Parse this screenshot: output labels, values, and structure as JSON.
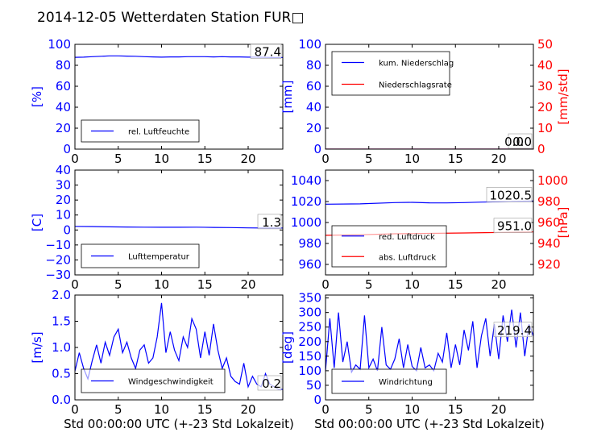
{
  "title": "2014-12-05 Wetterdaten Station FUR□",
  "colors": {
    "primary": "#0000ff",
    "secondary": "#ff0000",
    "axis": "#000000"
  },
  "chart_data": [
    {
      "id": "humidity",
      "type": "line",
      "ylabel": "[%]",
      "xlabel": "",
      "xlim": [
        0,
        24
      ],
      "ylim": [
        0,
        100
      ],
      "xticks": [
        0,
        5,
        10,
        15,
        20
      ],
      "yticks": [
        0,
        20,
        40,
        60,
        80,
        100
      ],
      "legend": [
        "rel. Luftfeuchte"
      ],
      "legend_position": "lower-left",
      "last_value_label": "87.4",
      "series": [
        {
          "name": "rel. Luftfeuchte",
          "axis": "left",
          "color": "#0000ff",
          "x": [
            0,
            1,
            2,
            3,
            4,
            5,
            6,
            7,
            8,
            9,
            10,
            11,
            12,
            13,
            14,
            15,
            16,
            17,
            18,
            19,
            20,
            21,
            22,
            23,
            24
          ],
          "y": [
            87.6,
            87.8,
            88.2,
            88.6,
            89.0,
            89.0,
            88.8,
            88.6,
            88.2,
            88.0,
            87.8,
            88.0,
            88.0,
            88.2,
            88.2,
            88.2,
            88.0,
            88.2,
            88.0,
            88.0,
            87.8,
            87.8,
            87.6,
            87.4,
            87.4
          ]
        }
      ]
    },
    {
      "id": "precip",
      "type": "line",
      "ylabel": "[mm]",
      "y2label": "[mm/std]",
      "xlabel": "",
      "xlim": [
        0,
        24
      ],
      "ylim": [
        0,
        100
      ],
      "y2lim": [
        0,
        50
      ],
      "xticks": [
        0,
        5,
        10,
        15,
        20
      ],
      "yticks": [
        0,
        20,
        40,
        60,
        80,
        100
      ],
      "y2ticks": [
        0,
        10,
        20,
        30,
        40,
        50
      ],
      "legend": [
        "kum. Niederschlag",
        "Niederschlagsrate"
      ],
      "legend_position": "upper-left",
      "last_value_label": "0.0",
      "second_value_label": "0.0",
      "series": [
        {
          "name": "kum. Niederschlag",
          "axis": "left",
          "color": "#0000ff",
          "x": [
            0,
            24
          ],
          "y": [
            0,
            0
          ]
        },
        {
          "name": "Niederschlagsrate",
          "axis": "right",
          "color": "#ff0000",
          "x": [
            0,
            24
          ],
          "y": [
            0,
            0
          ]
        }
      ]
    },
    {
      "id": "temperature",
      "type": "line",
      "ylabel": "[C]",
      "xlabel": "",
      "xlim": [
        0,
        24
      ],
      "ylim": [
        -30,
        40
      ],
      "xticks": [
        0,
        5,
        10,
        15,
        20
      ],
      "yticks": [
        -30,
        -20,
        -10,
        0,
        10,
        20,
        30,
        40
      ],
      "legend": [
        "Lufttemperatur"
      ],
      "legend_position": "lower-left",
      "last_value_label": "1.3",
      "series": [
        {
          "name": "Lufttemperatur",
          "axis": "left",
          "color": "#0000ff",
          "x": [
            0,
            2,
            4,
            6,
            8,
            10,
            12,
            14,
            16,
            18,
            20,
            22,
            24
          ],
          "y": [
            2.4,
            2.3,
            2.1,
            2.0,
            1.9,
            1.8,
            1.8,
            1.9,
            1.7,
            1.6,
            1.4,
            1.3,
            1.3
          ]
        }
      ]
    },
    {
      "id": "pressure",
      "type": "line",
      "ylabel": "",
      "y2label": "[hPa]",
      "xlabel": "",
      "xlim": [
        0,
        24
      ],
      "ylim": [
        950,
        1050
      ],
      "y2lim": [
        910,
        1010
      ],
      "xticks": [
        0,
        5,
        10,
        15,
        20
      ],
      "yticks": [
        960,
        980,
        1000,
        1020,
        1040
      ],
      "y2ticks": [
        920,
        940,
        960,
        980,
        1000
      ],
      "legend": [
        "red. Luftdruck",
        "abs. Luftdruck"
      ],
      "legend_position": "lower-left",
      "last_value_label": "1020.5",
      "second_value_label": "951.0",
      "series": [
        {
          "name": "red. Luftdruck",
          "axis": "left",
          "color": "#0000ff",
          "x": [
            0,
            4,
            8,
            10,
            12,
            14,
            16,
            18,
            20,
            22,
            24
          ],
          "y": [
            1017.5,
            1017.8,
            1019.0,
            1019.2,
            1018.8,
            1018.7,
            1019.0,
            1019.5,
            1019.8,
            1020.2,
            1020.5
          ]
        },
        {
          "name": "abs. Luftdruck",
          "axis": "right",
          "color": "#ff0000",
          "x": [
            0,
            4,
            8,
            12,
            16,
            20,
            24
          ],
          "y": [
            947.8,
            948.3,
            949.2,
            949.6,
            950.0,
            950.5,
            951.0
          ]
        }
      ]
    },
    {
      "id": "windspeed",
      "type": "line",
      "ylabel": "[m/s]",
      "xlabel": "Std 00:00:00 UTC (+-23 Std Lokalzeit)",
      "xlim": [
        0,
        24
      ],
      "ylim": [
        0,
        2.0
      ],
      "xticks": [
        0,
        5,
        10,
        15,
        20
      ],
      "yticks": [
        0.0,
        0.5,
        1.0,
        1.5,
        2.0
      ],
      "legend": [
        "Windgeschwindigkeit"
      ],
      "legend_position": "lower-left",
      "last_value_label": "0.2",
      "series": [
        {
          "name": "Windgeschwindigkeit",
          "axis": "left",
          "color": "#0000ff",
          "x": [
            0,
            0.5,
            1,
            1.5,
            2,
            2.5,
            3,
            3.5,
            4,
            4.5,
            5,
            5.5,
            6,
            6.5,
            7,
            7.5,
            8,
            8.5,
            9,
            9.5,
            10,
            10.5,
            11,
            11.5,
            12,
            12.5,
            13,
            13.5,
            14,
            14.5,
            15,
            15.5,
            16,
            16.5,
            17,
            17.5,
            18,
            18.5,
            19,
            19.5,
            20,
            20.5,
            21,
            21.5,
            22,
            22.5,
            23,
            23.5,
            24
          ],
          "y": [
            0.55,
            0.9,
            0.6,
            0.4,
            0.75,
            1.05,
            0.7,
            1.1,
            0.85,
            1.2,
            1.35,
            0.9,
            1.1,
            0.8,
            0.6,
            0.95,
            1.05,
            0.7,
            0.8,
            1.2,
            1.85,
            0.9,
            1.3,
            0.95,
            0.75,
            1.2,
            1.0,
            1.55,
            1.35,
            0.8,
            1.3,
            0.85,
            1.45,
            0.95,
            0.6,
            0.8,
            0.45,
            0.35,
            0.3,
            0.7,
            0.25,
            0.45,
            0.3,
            0.25,
            0.5,
            0.3,
            0.25,
            0.2,
            0.2
          ]
        }
      ]
    },
    {
      "id": "winddir",
      "type": "line",
      "ylabel": "[deg]",
      "xlabel": "Std 00:00:00 UTC (+-23 Std Lokalzeit)",
      "xlim": [
        0,
        24
      ],
      "ylim": [
        0,
        360
      ],
      "xticks": [
        0,
        5,
        10,
        15,
        20
      ],
      "yticks": [
        0,
        50,
        100,
        150,
        200,
        250,
        300,
        350
      ],
      "legend": [
        "Windrichtung"
      ],
      "legend_position": "lower-left",
      "last_value_label": "219.4",
      "series": [
        {
          "name": "Windrichtung",
          "axis": "left",
          "color": "#0000ff",
          "x": [
            0,
            0.5,
            1,
            1.5,
            2,
            2.5,
            3,
            3.5,
            4,
            4.5,
            5,
            5.5,
            6,
            6.5,
            7,
            7.5,
            8,
            8.5,
            9,
            9.5,
            10,
            10.5,
            11,
            11.5,
            12,
            12.5,
            13,
            13.5,
            14,
            14.5,
            15,
            15.5,
            16,
            16.5,
            17,
            17.5,
            18,
            18.5,
            19,
            19.5,
            20,
            20.5,
            21,
            21.5,
            22,
            22.5,
            23,
            23.5,
            24
          ],
          "y": [
            100,
            280,
            110,
            300,
            130,
            200,
            95,
            120,
            105,
            290,
            110,
            140,
            100,
            250,
            120,
            105,
            140,
            210,
            110,
            190,
            115,
            100,
            180,
            110,
            120,
            100,
            160,
            130,
            230,
            110,
            190,
            120,
            240,
            170,
            270,
            110,
            220,
            280,
            150,
            260,
            140,
            290,
            200,
            310,
            180,
            300,
            150,
            260,
            219.4
          ]
        }
      ]
    }
  ]
}
